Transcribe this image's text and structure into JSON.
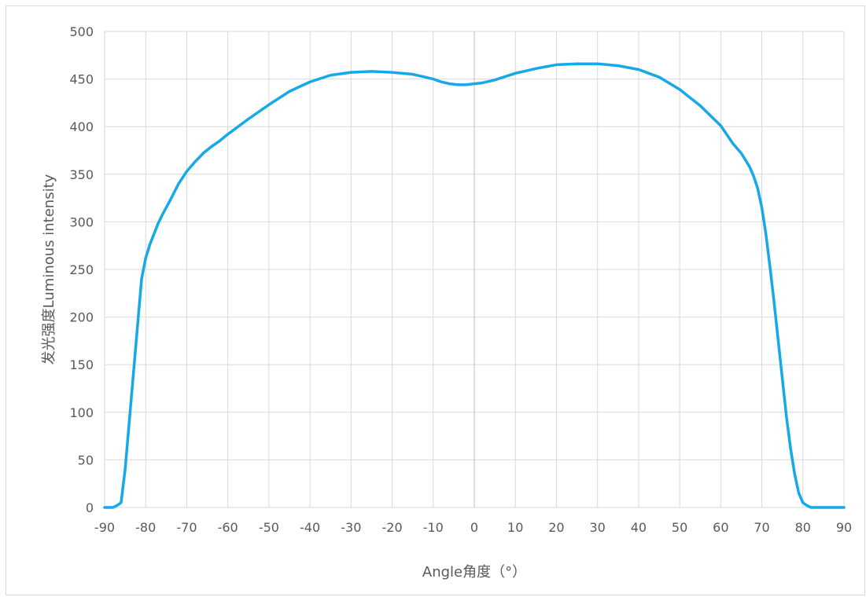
{
  "chart_data": {
    "type": "line",
    "title": "",
    "xlabel": "Angle角度（°）",
    "ylabel": "发光强度Luminous intensity",
    "xlim": [
      -90,
      90
    ],
    "ylim": [
      0,
      500
    ],
    "xticks": [
      -90,
      -80,
      -70,
      -60,
      -50,
      -40,
      -30,
      -20,
      -10,
      0,
      10,
      20,
      30,
      40,
      50,
      60,
      70,
      80,
      90
    ],
    "yticks": [
      0,
      50,
      100,
      150,
      200,
      250,
      300,
      350,
      400,
      450,
      500
    ],
    "grid": true,
    "legend": "none",
    "line_color": "#16A9E8",
    "series": [
      {
        "x": [
          -90,
          -88,
          -87,
          -86,
          -85,
          -84,
          -83,
          -82,
          -81,
          -80,
          -79,
          -78,
          -77,
          -76,
          -75,
          -74,
          -72,
          -70,
          -68,
          -66,
          -64,
          -62,
          -60,
          -55,
          -50,
          -45,
          -40,
          -35,
          -30,
          -25,
          -20,
          -15,
          -10,
          -8,
          -6,
          -4,
          -2,
          0,
          2,
          5,
          10,
          15,
          20,
          25,
          30,
          35,
          40,
          45,
          50,
          55,
          60,
          63,
          65,
          67,
          68,
          69,
          70,
          71,
          72,
          73,
          74,
          75,
          76,
          77,
          78,
          79,
          80,
          81,
          82,
          83,
          84,
          86,
          90
        ],
        "values": [
          0,
          0,
          2,
          5,
          40,
          90,
          140,
          190,
          240,
          262,
          276,
          287,
          298,
          307,
          315,
          323,
          340,
          353,
          363,
          372,
          379,
          385,
          392,
          408,
          423,
          437,
          447,
          454,
          457,
          458,
          457,
          455,
          450,
          447,
          445,
          444,
          444,
          445,
          446,
          449,
          456,
          461,
          465,
          466,
          466,
          464,
          460,
          452,
          439,
          422,
          401,
          382,
          372,
          358,
          348,
          335,
          315,
          287,
          252,
          215,
          175,
          135,
          95,
          62,
          35,
          15,
          5,
          2,
          0,
          0,
          0,
          0,
          0
        ]
      }
    ]
  }
}
